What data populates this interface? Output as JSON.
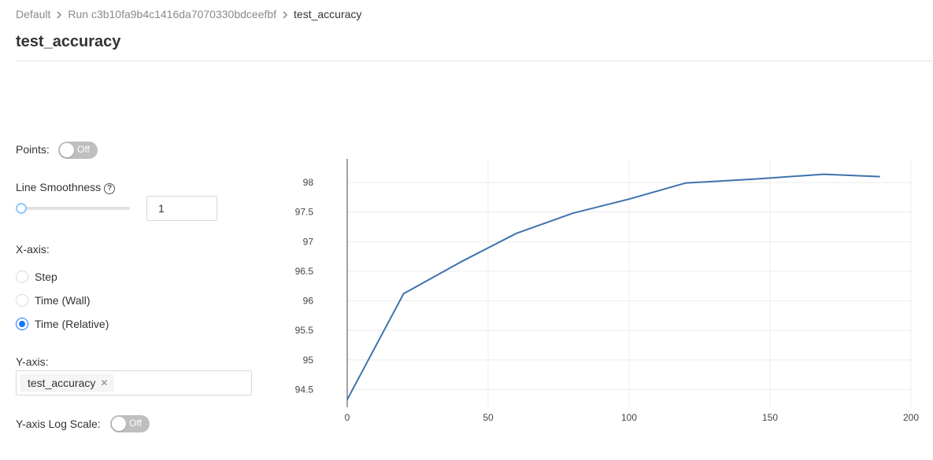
{
  "breadcrumb": {
    "items": [
      "Default",
      "Run c3b10fa9b4c1416da7070330bdceefbf",
      "test_accuracy"
    ]
  },
  "page": {
    "title": "test_accuracy"
  },
  "controls": {
    "points": {
      "label": "Points:",
      "state": "Off"
    },
    "smoothness": {
      "label": "Line Smoothness",
      "value": "1",
      "slider_fraction": 0
    },
    "x_axis": {
      "label": "X-axis:",
      "options": [
        "Step",
        "Time (Wall)",
        "Time (Relative)"
      ],
      "selected": "Time (Relative)"
    },
    "y_axis": {
      "label": "Y-axis:",
      "selected_tag": "test_accuracy"
    },
    "y_log": {
      "label": "Y-axis Log Scale:",
      "state": "Off"
    }
  },
  "colors": {
    "line": "#3f72ad",
    "accent": "#1677ff",
    "toggle_off": "#bfbfbf"
  },
  "chart_data": {
    "type": "line",
    "series": [
      {
        "x": [
          0,
          20,
          40,
          60,
          80,
          100,
          120,
          145,
          169,
          189
        ],
        "y": [
          94.33,
          96.12,
          96.65,
          97.14,
          97.48,
          97.72,
          97.99,
          98.06,
          98.14,
          98.1
        ]
      }
    ],
    "xlim": [
      0,
      200
    ],
    "ylim": [
      94.2,
      98.4
    ],
    "xticks": [
      "0",
      "50",
      "100",
      "150",
      "200"
    ],
    "yticks": [
      "94.5",
      "95",
      "95.5",
      "96",
      "96.5",
      "97",
      "97.5",
      "98"
    ],
    "grid": true
  }
}
